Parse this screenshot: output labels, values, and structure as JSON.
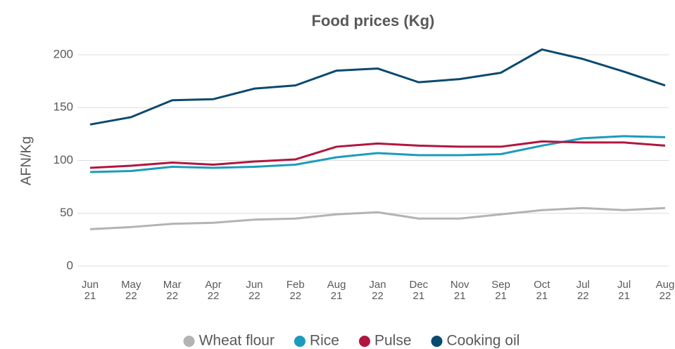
{
  "chart_data": {
    "type": "line",
    "title": "Food prices (Kg)",
    "y_label": "AFN/Kg",
    "categories": [
      "Jun 21",
      "May 22",
      "Mar 22",
      "Apr 22",
      "Jun 22",
      "Feb 22",
      "Aug 21",
      "Jan 22",
      "Dec 21",
      "Nov 21",
      "Sep 21",
      "Oct 21",
      "Jul 22",
      "Jul 21",
      "Aug 22"
    ],
    "series": [
      {
        "name": "Wheat flour",
        "color": "#b3b3b3",
        "values": [
          35,
          37,
          40,
          41,
          44,
          45,
          49,
          51,
          45,
          45,
          49,
          53,
          55,
          53,
          55
        ]
      },
      {
        "name": "Rice",
        "color": "#1b9bbd",
        "values": [
          89,
          90,
          94,
          93,
          94,
          96,
          103,
          107,
          105,
          105,
          106,
          114,
          121,
          123,
          122
        ]
      },
      {
        "name": "Pulse",
        "color": "#b0173f",
        "values": [
          93,
          95,
          98,
          96,
          99,
          101,
          113,
          116,
          114,
          113,
          113,
          118,
          117,
          117,
          114
        ]
      },
      {
        "name": "Cooking oil",
        "color": "#0b4a6f",
        "values": [
          134,
          141,
          157,
          158,
          168,
          171,
          185,
          187,
          174,
          177,
          183,
          205,
          196,
          184,
          171
        ]
      }
    ],
    "ylim": [
      0,
      200
    ],
    "yticks": [
      0,
      50,
      100,
      150,
      200
    ],
    "grid": true,
    "legend": "bottom"
  }
}
